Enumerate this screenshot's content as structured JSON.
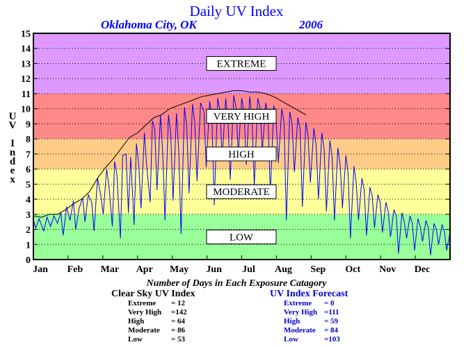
{
  "header": {
    "title": "Daily UV Index",
    "location": "Oklahoma City, OK",
    "year": "2006"
  },
  "chart_data": {
    "type": "line",
    "ylabel": "UV Index",
    "ylabel_letters": [
      "U",
      "V",
      "",
      "I",
      "n",
      "d",
      "e",
      "x"
    ],
    "ylim": [
      0,
      15
    ],
    "yticks": [
      "0",
      "1",
      "2",
      "3",
      "4",
      "5",
      "6",
      "7",
      "8",
      "9",
      "10",
      "11",
      "12",
      "13",
      "14",
      "15"
    ],
    "months": [
      "Jan",
      "Feb",
      "Mar",
      "Apr",
      "May",
      "Jun",
      "Jul",
      "Aug",
      "Sep",
      "Oct",
      "Nov",
      "Dec"
    ],
    "xlim_days": [
      1,
      365
    ],
    "grid": "dotted horizontal",
    "bands": [
      {
        "label": "LOW",
        "from": 0,
        "to": 3,
        "color": "#99ff99"
      },
      {
        "label": "MODERATE",
        "from": 3,
        "to": 6,
        "color": "#ffff99"
      },
      {
        "label": "HIGH",
        "from": 6,
        "to": 8,
        "color": "#ffcc88"
      },
      {
        "label": "VERY HIGH",
        "from": 8,
        "to": 11,
        "color": "#ff8888"
      },
      {
        "label": "EXTREME",
        "from": 11,
        "to": 15,
        "color": "#dd99ff"
      }
    ],
    "series": [
      {
        "color": "#000000",
        "points": [
          [
            1,
            2.9
          ],
          [
            8,
            2.8
          ],
          [
            15,
            3.0
          ],
          [
            22,
            3.0
          ],
          [
            29,
            3.3
          ],
          [
            36,
            3.7
          ],
          [
            43,
            4.0
          ],
          [
            50,
            4.5
          ],
          [
            57,
            5.4
          ],
          [
            64,
            6.1
          ],
          [
            71,
            6.7
          ],
          [
            78,
            7.4
          ],
          [
            85,
            8.1
          ],
          [
            92,
            8.4
          ],
          [
            99,
            8.9
          ],
          [
            106,
            9.4
          ],
          [
            113,
            9.6
          ],
          [
            120,
            10.0
          ],
          [
            127,
            10.2
          ],
          [
            134,
            10.4
          ],
          [
            141,
            10.6
          ],
          [
            148,
            10.8
          ],
          [
            155,
            10.9
          ],
          [
            162,
            11.0
          ],
          [
            169,
            11.1
          ],
          [
            176,
            11.2
          ],
          [
            183,
            11.2
          ],
          [
            190,
            11.1
          ],
          [
            197,
            11.1
          ],
          [
            204,
            11.0
          ],
          [
            211,
            10.8
          ],
          [
            218,
            10.5
          ],
          [
            225,
            10.2
          ],
          [
            232,
            9.9
          ],
          [
            239,
            9.6
          ]
        ]
      },
      {
        "color": "#0000ff",
        "points": [
          [
            1,
            2.6
          ],
          [
            3,
            2.1
          ],
          [
            6,
            2.7
          ],
          [
            10,
            1.9
          ],
          [
            13,
            2.8
          ],
          [
            16,
            2.2
          ],
          [
            19,
            2.9
          ],
          [
            22,
            2.4
          ],
          [
            25,
            3.1
          ],
          [
            27,
            1.6
          ],
          [
            30,
            3.5
          ],
          [
            33,
            2.6
          ],
          [
            36,
            3.9
          ],
          [
            38,
            2.0
          ],
          [
            41,
            3.4
          ],
          [
            44,
            4.1
          ],
          [
            46,
            2.5
          ],
          [
            49,
            4.3
          ],
          [
            52,
            3.8
          ],
          [
            54,
            1.9
          ],
          [
            57,
            5.4
          ],
          [
            60,
            4.2
          ],
          [
            62,
            3.0
          ],
          [
            65,
            6.0
          ],
          [
            67,
            4.9
          ],
          [
            70,
            2.2
          ],
          [
            72,
            6.5
          ],
          [
            74,
            5.6
          ],
          [
            77,
            1.4
          ],
          [
            79,
            6.9
          ],
          [
            82,
            7.0
          ],
          [
            84,
            3.1
          ],
          [
            86,
            6.8
          ],
          [
            89,
            2.3
          ],
          [
            91,
            7.7
          ],
          [
            93,
            6.4
          ],
          [
            95,
            3.4
          ],
          [
            98,
            8.4
          ],
          [
            100,
            6.2
          ],
          [
            103,
            3.8
          ],
          [
            105,
            9.2
          ],
          [
            107,
            8.7
          ],
          [
            109,
            4.6
          ],
          [
            112,
            9.6
          ],
          [
            114,
            7.0
          ],
          [
            116,
            2.6
          ],
          [
            119,
            9.6
          ],
          [
            121,
            8.3
          ],
          [
            123,
            3.9
          ],
          [
            126,
            9.7
          ],
          [
            128,
            7.2
          ],
          [
            130,
            1.7
          ],
          [
            133,
            10.1
          ],
          [
            135,
            8.8
          ],
          [
            137,
            4.4
          ],
          [
            140,
            10.3
          ],
          [
            142,
            9.1
          ],
          [
            144,
            5.2
          ],
          [
            147,
            10.4
          ],
          [
            150,
            9.8
          ],
          [
            152,
            6.1
          ],
          [
            155,
            10.5
          ],
          [
            157,
            9.4
          ],
          [
            159,
            3.6
          ],
          [
            162,
            10.7
          ],
          [
            164,
            9.9
          ],
          [
            166,
            6.7
          ],
          [
            169,
            10.7
          ],
          [
            171,
            9.2
          ],
          [
            173,
            5.3
          ],
          [
            176,
            10.9
          ],
          [
            178,
            10.1
          ],
          [
            180,
            7.0
          ],
          [
            183,
            10.7
          ],
          [
            185,
            9.8
          ],
          [
            187,
            6.3
          ],
          [
            190,
            10.8
          ],
          [
            192,
            9.4
          ],
          [
            194,
            4.9
          ],
          [
            197,
            10.7
          ],
          [
            199,
            10.1
          ],
          [
            201,
            7.2
          ],
          [
            204,
            10.4
          ],
          [
            206,
            9.5
          ],
          [
            208,
            4.3
          ],
          [
            211,
            10.2
          ],
          [
            213,
            9.3
          ],
          [
            215,
            6.4
          ],
          [
            218,
            10.0
          ],
          [
            220,
            9.1
          ],
          [
            222,
            2.6
          ],
          [
            225,
            9.8
          ],
          [
            227,
            9.0
          ],
          [
            229,
            5.8
          ],
          [
            232,
            9.4
          ],
          [
            234,
            8.7
          ],
          [
            236,
            3.5
          ],
          [
            239,
            9.1
          ],
          [
            241,
            8.2
          ],
          [
            243,
            5.1
          ],
          [
            246,
            8.7
          ],
          [
            248,
            7.6
          ],
          [
            250,
            4.0
          ],
          [
            253,
            8.4
          ],
          [
            255,
            7.3
          ],
          [
            257,
            3.2
          ],
          [
            260,
            7.9
          ],
          [
            262,
            6.8
          ],
          [
            264,
            2.6
          ],
          [
            267,
            7.4
          ],
          [
            269,
            6.3
          ],
          [
            271,
            3.4
          ],
          [
            274,
            6.9
          ],
          [
            276,
            5.7
          ],
          [
            278,
            1.4
          ],
          [
            281,
            6.2
          ],
          [
            283,
            5.1
          ],
          [
            285,
            2.6
          ],
          [
            288,
            5.4
          ],
          [
            290,
            4.6
          ],
          [
            292,
            1.6
          ],
          [
            295,
            4.8
          ],
          [
            297,
            4.2
          ],
          [
            299,
            2.1
          ],
          [
            302,
            4.3
          ],
          [
            304,
            3.8
          ],
          [
            306,
            1.8
          ],
          [
            309,
            3.8
          ],
          [
            311,
            3.2
          ],
          [
            313,
            1.5
          ],
          [
            316,
            3.3
          ],
          [
            318,
            2.9
          ],
          [
            320,
            0.4
          ],
          [
            323,
            3.1
          ],
          [
            325,
            2.5
          ],
          [
            327,
            1.4
          ],
          [
            330,
            2.9
          ],
          [
            332,
            2.4
          ],
          [
            334,
            0.6
          ],
          [
            337,
            2.7
          ],
          [
            339,
            2.2
          ],
          [
            341,
            1.2
          ],
          [
            344,
            2.6
          ],
          [
            346,
            2.1
          ],
          [
            348,
            0.3
          ],
          [
            351,
            2.4
          ],
          [
            353,
            2.0
          ],
          [
            355,
            1.0
          ],
          [
            358,
            2.3
          ],
          [
            360,
            1.9
          ],
          [
            362,
            0.6
          ],
          [
            365,
            1.8
          ]
        ]
      }
    ]
  },
  "stats": {
    "title": "Number of Days in Each Exposure Catagory",
    "clear_sky": {
      "heading": "Clear Sky UV Index",
      "rows": [
        {
          "label": "Extreme",
          "value": "= 12"
        },
        {
          "label": "Very High",
          "value": "=142"
        },
        {
          "label": "High",
          "value": "= 64"
        },
        {
          "label": "Moderate",
          "value": "= 86"
        },
        {
          "label": "Low",
          "value": "= 53"
        }
      ]
    },
    "forecast": {
      "heading": "UV Index Forecast",
      "rows": [
        {
          "label": "Extreme",
          "value": "= 0"
        },
        {
          "label": "Very High",
          "value": "=111"
        },
        {
          "label": "High",
          "value": "= 59"
        },
        {
          "label": "Moderate",
          "value": "= 84"
        },
        {
          "label": "Low",
          "value": "=103"
        }
      ]
    }
  }
}
